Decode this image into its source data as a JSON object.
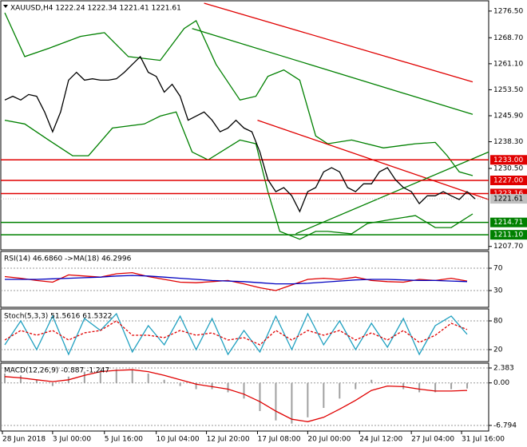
{
  "chart_data": [
    {
      "type": "price",
      "title": "XAUUSD,H4 1222.24 1222.34 1221.41 1221.61",
      "x": [
        0,
        1,
        2,
        3,
        4,
        5,
        6,
        7,
        8,
        9,
        10,
        11,
        12,
        13,
        14,
        15,
        16,
        17,
        18,
        19,
        20,
        21,
        22,
        23,
        24,
        25,
        26,
        27,
        28,
        29,
        30,
        31,
        32,
        33,
        34,
        35,
        36,
        37,
        38,
        39,
        40,
        41,
        42,
        43,
        44,
        45,
        46,
        47,
        48,
        49,
        50,
        51,
        52,
        53,
        54,
        55,
        56,
        57,
        58,
        59
      ],
      "series": [
        {
          "color": "#000000",
          "values": [
            1250.5,
            1251.6,
            1250.5,
            1252.1,
            1251.6,
            1247.0,
            1241.2,
            1247.0,
            1256.3,
            1258.6,
            1256.3,
            1256.7,
            1256.3,
            1256.3,
            1256.7,
            1258.6,
            1260.9,
            1263.2,
            1258.6,
            1257.4,
            1252.8,
            1255.1,
            1251.6,
            1244.6,
            1245.8,
            1247.0,
            1244.6,
            1241.2,
            1242.3,
            1244.6,
            1242.3,
            1241.2,
            1235.3,
            1227.2,
            1223.7,
            1224.9,
            1222.5,
            1217.9,
            1223.7,
            1224.9,
            1229.5,
            1230.7,
            1229.5,
            1224.9,
            1223.7,
            1226.0,
            1226.0,
            1229.5,
            1230.7,
            1227.2,
            1224.9,
            1223.7,
            1220.2,
            1222.5,
            1222.5,
            1223.7,
            1222.5,
            1221.4,
            1223.7,
            1221.6
          ]
        }
      ],
      "overlays": [
        {
          "color": "#008000",
          "x": [
            0,
            2.5,
            5.5,
            9.5,
            12.5,
            15.5,
            19.5,
            22.5,
            24,
            26.5,
            29.5,
            31.5,
            33,
            35,
            37,
            39,
            40.5,
            43.5,
            47.5,
            51.5,
            54,
            55.5,
            57,
            58.7
          ],
          "values": [
            1276.0,
            1263.2,
            1265.6,
            1269.1,
            1270.2,
            1263.2,
            1262.1,
            1271.4,
            1273.7,
            1260.9,
            1250.5,
            1251.6,
            1257.4,
            1259.3,
            1256.3,
            1240.0,
            1237.7,
            1238.8,
            1236.5,
            1237.7,
            1238.1,
            1234.2,
            1229.5,
            1228.4
          ]
        },
        {
          "color": "#008000",
          "x": [
            0,
            2.5,
            5.5,
            8.5,
            10.5,
            13.5,
            17.5,
            19.5,
            21.5,
            23.5,
            25.5,
            29.5,
            31.5,
            33,
            34.5,
            37,
            39,
            40.5,
            43.5,
            45.5,
            48.5,
            51.5,
            54,
            56,
            58.7
          ],
          "values": [
            1244.6,
            1243.5,
            1238.8,
            1234.2,
            1234.2,
            1242.3,
            1243.5,
            1245.8,
            1247.0,
            1235.3,
            1233.0,
            1238.8,
            1237.7,
            1223.7,
            1212.1,
            1209.8,
            1212.1,
            1212.1,
            1211.4,
            1214.4,
            1215.6,
            1216.7,
            1213.2,
            1213.2,
            1217.2
          ]
        },
        {
          "color": "#e00000",
          "x": [
            25,
            58.7
          ],
          "values": [
            1278.8,
            1255.8
          ]
        },
        {
          "color": "#008000",
          "x": [
            23.5,
            58.7
          ],
          "values": [
            1271.4,
            1246.3
          ]
        },
        {
          "color": "#e00000",
          "x": [
            31.7,
            60.7
          ],
          "values": [
            1244.6,
            1221.4
          ]
        },
        {
          "color": "#008000",
          "x": [
            36.5,
            60.7
          ],
          "values": [
            1211.4,
            1235.3
          ]
        }
      ],
      "levels": [
        {
          "value": 1233.0,
          "label": "1233.00",
          "color": "#e00000"
        },
        {
          "value": 1227.0,
          "label": "1227.00",
          "color": "#e00000"
        },
        {
          "value": 1223.16,
          "label": "1223.16",
          "color": "#e00000"
        },
        {
          "value": 1214.71,
          "label": "1214.71",
          "color": "#008000"
        },
        {
          "value": 1211.1,
          "label": "1211.10",
          "color": "#008000"
        }
      ],
      "last": {
        "value": 1221.61,
        "label": "1221.61",
        "color": "#c0c0c0"
      },
      "xlim": [
        -0.5,
        60.7
      ],
      "ylim": [
        1206.7,
        1279.5
      ],
      "yticks": [
        {
          "value": 1276.5,
          "label": "1276.50"
        },
        {
          "value": 1268.7,
          "label": "1268.70"
        },
        {
          "value": 1261.1,
          "label": "1261.10"
        },
        {
          "value": 1253.5,
          "label": "1253.50"
        },
        {
          "value": 1245.9,
          "label": "1245.90"
        },
        {
          "value": 1238.3,
          "label": "1238.30"
        },
        {
          "value": 1230.5,
          "label": "1230.50"
        },
        {
          "value": 1207.7,
          "label": "1207.70"
        }
      ],
      "xticks": [
        {
          "value": -0.3,
          "label": "28 Jun 2018"
        },
        {
          "value": 6,
          "label": "3 Jul 00:00"
        },
        {
          "value": 12.5,
          "label": "5 Jul 16:00"
        },
        {
          "value": 19,
          "label": "10 Jul 04:00"
        },
        {
          "value": 25.3,
          "label": "12 Jul 20:00"
        },
        {
          "value": 31.7,
          "label": "17 Jul 08:00"
        },
        {
          "value": 38,
          "label": "20 Jul 00:00"
        },
        {
          "value": 44.5,
          "label": "24 Jul 12:00"
        },
        {
          "value": 51,
          "label": "27 Jul 04:00"
        },
        {
          "value": 57.3,
          "label": "31 Jul 16:00"
        }
      ]
    },
    {
      "type": "line",
      "title": "RSI(14) 46.6860 ->MA(18) 46.2996",
      "x": [
        0,
        2,
        4,
        6,
        8,
        10,
        12,
        14,
        16,
        18,
        20,
        22,
        24,
        26,
        28,
        30,
        32,
        34,
        36,
        38,
        40,
        42,
        44,
        46,
        48,
        50,
        52,
        54,
        56,
        58
      ],
      "series": [
        {
          "color": "#e00000",
          "style": "line",
          "values": [
            55,
            52,
            48,
            45,
            58,
            56,
            54,
            60,
            62,
            55,
            50,
            45,
            44,
            46,
            48,
            42,
            35,
            30,
            40,
            50,
            52,
            50,
            54,
            48,
            46,
            45,
            50,
            48,
            52,
            47
          ]
        },
        {
          "color": "#0000c0",
          "style": "line",
          "values": [
            50,
            50,
            50,
            51,
            52,
            53,
            54,
            56,
            57,
            56,
            54,
            52,
            50,
            48,
            47,
            46,
            44,
            42,
            42,
            43,
            45,
            47,
            49,
            50,
            50,
            49,
            48,
            48,
            47,
            46
          ]
        }
      ],
      "xlim": [
        -0.5,
        60.7
      ],
      "ylim": [
        0,
        100
      ],
      "yticks": [
        70,
        30
      ]
    },
    {
      "type": "line",
      "title": "Stoch(5,3,3) 51.5616 61.5322",
      "x": [
        0,
        2,
        4,
        6,
        8,
        10,
        12,
        14,
        16,
        18,
        20,
        22,
        24,
        26,
        28,
        30,
        32,
        34,
        36,
        38,
        40,
        42,
        44,
        46,
        48,
        50,
        52,
        54,
        56,
        58
      ],
      "series": [
        {
          "color": "#20a0c0",
          "style": "line",
          "values": [
            30,
            80,
            20,
            90,
            10,
            85,
            60,
            95,
            15,
            70,
            30,
            90,
            20,
            85,
            10,
            60,
            15,
            90,
            20,
            95,
            30,
            80,
            20,
            75,
            25,
            85,
            10,
            70,
            90,
            52
          ]
        },
        {
          "color": "#e00000",
          "style": "dash",
          "values": [
            40,
            60,
            50,
            60,
            40,
            55,
            60,
            80,
            50,
            50,
            45,
            60,
            50,
            55,
            40,
            45,
            30,
            60,
            40,
            60,
            50,
            60,
            40,
            55,
            40,
            60,
            35,
            50,
            75,
            62
          ]
        }
      ],
      "xlim": [
        -0.5,
        60.7
      ],
      "ylim": [
        -5,
        105
      ],
      "yticks": [
        80,
        20
      ]
    },
    {
      "type": "line",
      "title": "MACD(12,26,9) -0.887 -1.247",
      "x": [
        0,
        2,
        4,
        6,
        8,
        10,
        12,
        14,
        16,
        18,
        20,
        22,
        24,
        26,
        28,
        30,
        32,
        34,
        36,
        38,
        40,
        42,
        44,
        46,
        48,
        50,
        52,
        54,
        56,
        58
      ],
      "series": [
        {
          "color": "#a0a0a0",
          "style": "bar",
          "values": [
            1.5,
            1.2,
            0.5,
            -0.5,
            1.0,
            1.8,
            2.0,
            2.2,
            2.0,
            1.5,
            0.5,
            -0.5,
            -1.0,
            -1.0,
            -1.5,
            -2.5,
            -4.5,
            -6.0,
            -6.5,
            -5.5,
            -4.0,
            -2.5,
            -1.0,
            0.5,
            0,
            -1.0,
            -1.5,
            -1.5,
            -1.0,
            -0.9
          ]
        },
        {
          "color": "#e00000",
          "style": "line",
          "values": [
            1.0,
            0.8,
            0.5,
            0.2,
            0.5,
            1.2,
            1.8,
            2.0,
            2.1,
            1.8,
            1.2,
            0.5,
            -0.2,
            -0.6,
            -1.0,
            -1.8,
            -3.0,
            -4.5,
            -5.8,
            -6.2,
            -5.5,
            -4.2,
            -2.8,
            -1.2,
            -0.5,
            -0.6,
            -1.0,
            -1.3,
            -1.3,
            -1.2
          ]
        }
      ],
      "xlim": [
        -0.5,
        60.7
      ],
      "ylim": [
        -7.69,
        3.148
      ],
      "yticks": [
        {
          "value": 2.383,
          "label": "2.383"
        },
        {
          "value": 0,
          "label": "0.00"
        },
        {
          "value": -6.794,
          "label": "-6.794"
        }
      ]
    }
  ]
}
